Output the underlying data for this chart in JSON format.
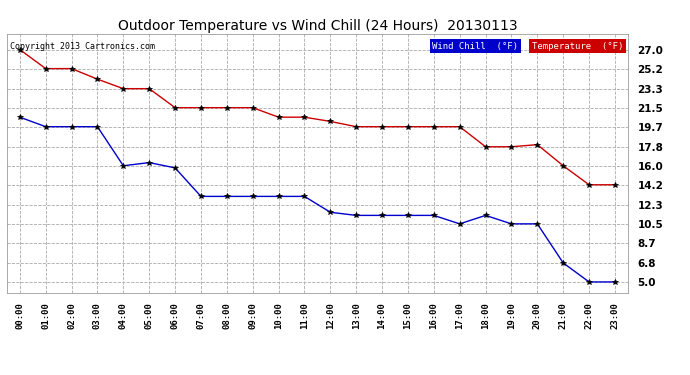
{
  "title": "Outdoor Temperature vs Wind Chill (24 Hours)  20130113",
  "copyright": "Copyright 2013 Cartronics.com",
  "x_labels": [
    "00:00",
    "01:00",
    "02:00",
    "03:00",
    "04:00",
    "05:00",
    "06:00",
    "07:00",
    "08:00",
    "09:00",
    "10:00",
    "11:00",
    "12:00",
    "13:00",
    "14:00",
    "15:00",
    "16:00",
    "17:00",
    "18:00",
    "19:00",
    "20:00",
    "21:00",
    "22:00",
    "23:00"
  ],
  "temperature": [
    27.0,
    25.2,
    25.2,
    24.2,
    23.3,
    23.3,
    21.5,
    21.5,
    21.5,
    21.5,
    20.6,
    20.6,
    20.2,
    19.7,
    19.7,
    19.7,
    19.7,
    19.7,
    17.8,
    17.8,
    18.0,
    16.0,
    14.2,
    14.2
  ],
  "wind_chill": [
    20.6,
    19.7,
    19.7,
    19.7,
    16.0,
    16.3,
    15.8,
    13.1,
    13.1,
    13.1,
    13.1,
    13.1,
    11.6,
    11.3,
    11.3,
    11.3,
    11.3,
    10.5,
    11.3,
    10.5,
    10.5,
    6.8,
    5.0,
    5.0
  ],
  "y_ticks": [
    5.0,
    6.8,
    8.7,
    10.5,
    12.3,
    14.2,
    16.0,
    17.8,
    19.7,
    21.5,
    23.3,
    25.2,
    27.0
  ],
  "ylim": [
    4.0,
    28.5
  ],
  "temp_color": "#cc0000",
  "wind_color": "#0000cc",
  "bg_color": "#ffffff",
  "plot_bg_color": "#ffffff",
  "grid_color": "#aaaaaa",
  "legend_wind_bg": "#0000cc",
  "legend_temp_bg": "#cc0000",
  "legend_text_color": "#ffffff",
  "marker_color": "#000000"
}
